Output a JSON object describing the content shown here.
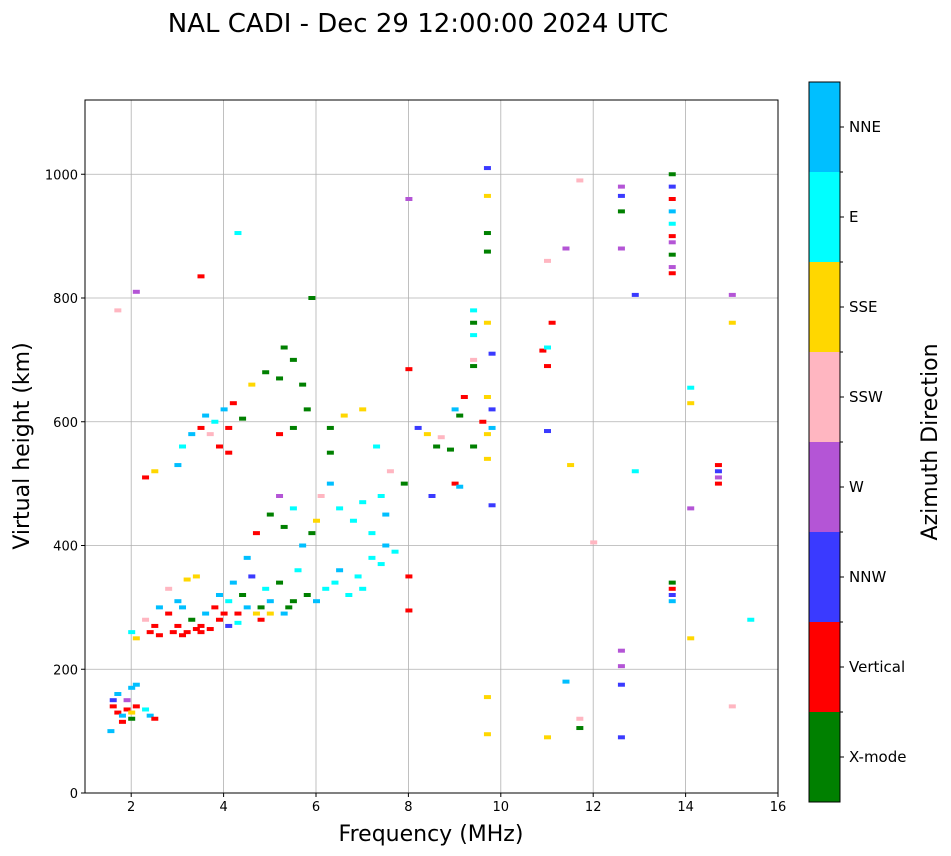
{
  "chart_data": {
    "type": "scatter",
    "title": "NAL CADI - Dec 29 12:00:00 2024 UTC",
    "xlabel": "Frequency (MHz)",
    "ylabel": "Virtual height (km)",
    "xlim": [
      1,
      16
    ],
    "ylim": [
      0,
      1120
    ],
    "xticks": [
      2,
      4,
      6,
      8,
      10,
      12,
      14,
      16
    ],
    "yticks": [
      0,
      200,
      400,
      600,
      800,
      1000
    ],
    "grid": true,
    "colorbar": {
      "label": "Azimuth Direction",
      "categories": [
        "X-mode",
        "Vertical",
        "NNW",
        "W",
        "SSW",
        "SSE",
        "E",
        "NNE"
      ],
      "colors": [
        "#008000",
        "#ff0000",
        "#3a3aff",
        "#b455d6",
        "#ffb6c1",
        "#ffd700",
        "#00ffff",
        "#00bfff"
      ]
    },
    "point_format": [
      "frequency_mhz",
      "virtual_height_km",
      "category_index"
    ],
    "points": [
      [
        1.6,
        140,
        1
      ],
      [
        1.7,
        130,
        1
      ],
      [
        1.8,
        125,
        7
      ],
      [
        1.9,
        135,
        1
      ],
      [
        2.0,
        130,
        5
      ],
      [
        1.6,
        150,
        2
      ],
      [
        1.7,
        160,
        7
      ],
      [
        2.0,
        170,
        7
      ],
      [
        2.1,
        140,
        1
      ],
      [
        2.3,
        135,
        6
      ],
      [
        2.4,
        125,
        7
      ],
      [
        2.5,
        120,
        1
      ],
      [
        1.55,
        100,
        7
      ],
      [
        1.9,
        150,
        3
      ],
      [
        2.1,
        175,
        7
      ],
      [
        1.8,
        115,
        1
      ],
      [
        2.0,
        120,
        0
      ],
      [
        2.0,
        260,
        6
      ],
      [
        2.1,
        250,
        5
      ],
      [
        2.3,
        280,
        4
      ],
      [
        2.4,
        260,
        1
      ],
      [
        2.5,
        270,
        1
      ],
      [
        2.6,
        300,
        7
      ],
      [
        2.8,
        290,
        1
      ],
      [
        3.0,
        270,
        1
      ],
      [
        3.1,
        300,
        7
      ],
      [
        3.2,
        260,
        1
      ],
      [
        3.3,
        280,
        0
      ],
      [
        3.5,
        270,
        1
      ],
      [
        3.6,
        290,
        7
      ],
      [
        3.7,
        265,
        1
      ],
      [
        3.8,
        300,
        1
      ],
      [
        3.9,
        320,
        7
      ],
      [
        4.0,
        290,
        1
      ],
      [
        4.1,
        310,
        6
      ],
      [
        4.2,
        340,
        7
      ],
      [
        4.3,
        290,
        1
      ],
      [
        4.4,
        320,
        0
      ],
      [
        4.5,
        300,
        7
      ],
      [
        4.6,
        350,
        2
      ],
      [
        4.7,
        290,
        5
      ],
      [
        4.8,
        300,
        0
      ],
      [
        4.9,
        330,
        6
      ],
      [
        5.0,
        310,
        7
      ],
      [
        5.2,
        340,
        0
      ],
      [
        5.3,
        290,
        7
      ],
      [
        5.5,
        310,
        0
      ],
      [
        5.6,
        360,
        6
      ],
      [
        5.8,
        320,
        0
      ],
      [
        6.0,
        310,
        7
      ],
      [
        6.2,
        330,
        6
      ],
      [
        6.4,
        340,
        6
      ],
      [
        6.5,
        360,
        7
      ],
      [
        6.7,
        320,
        6
      ],
      [
        6.9,
        350,
        6
      ],
      [
        7.0,
        330,
        6
      ],
      [
        7.2,
        380,
        6
      ],
      [
        7.4,
        370,
        6
      ],
      [
        7.5,
        400,
        7
      ],
      [
        7.7,
        390,
        6
      ],
      [
        2.8,
        330,
        4
      ],
      [
        3.2,
        345,
        5
      ],
      [
        3.4,
        350,
        5
      ],
      [
        3.0,
        310,
        7
      ],
      [
        2.6,
        255,
        1
      ],
      [
        2.9,
        260,
        1
      ],
      [
        3.1,
        255,
        1
      ],
      [
        3.4,
        265,
        1
      ],
      [
        3.5,
        260,
        1
      ],
      [
        3.9,
        280,
        1
      ],
      [
        4.1,
        270,
        2
      ],
      [
        4.3,
        275,
        6
      ],
      [
        4.8,
        280,
        1
      ],
      [
        5.0,
        290,
        5
      ],
      [
        5.4,
        300,
        0
      ],
      [
        4.5,
        380,
        7
      ],
      [
        4.7,
        420,
        1
      ],
      [
        5.0,
        450,
        0
      ],
      [
        5.2,
        480,
        3
      ],
      [
        5.3,
        430,
        0
      ],
      [
        5.5,
        460,
        6
      ],
      [
        5.7,
        400,
        7
      ],
      [
        5.9,
        420,
        0
      ],
      [
        6.0,
        440,
        5
      ],
      [
        6.1,
        480,
        4
      ],
      [
        6.3,
        500,
        7
      ],
      [
        6.5,
        460,
        6
      ],
      [
        6.8,
        440,
        6
      ],
      [
        7.0,
        470,
        6
      ],
      [
        7.2,
        420,
        6
      ],
      [
        7.4,
        480,
        6
      ],
      [
        7.5,
        450,
        7
      ],
      [
        7.6,
        520,
        4
      ],
      [
        6.3,
        590,
        0
      ],
      [
        6.3,
        550,
        0
      ],
      [
        6.6,
        610,
        5
      ],
      [
        7.0,
        620,
        5
      ],
      [
        7.3,
        560,
        6
      ],
      [
        7.9,
        500,
        0
      ],
      [
        2.3,
        510,
        1
      ],
      [
        2.5,
        520,
        5
      ],
      [
        3.0,
        530,
        7
      ],
      [
        3.1,
        560,
        6
      ],
      [
        3.3,
        580,
        7
      ],
      [
        3.5,
        590,
        1
      ],
      [
        3.7,
        580,
        4
      ],
      [
        3.8,
        600,
        6
      ],
      [
        4.0,
        620,
        7
      ],
      [
        4.1,
        590,
        1
      ],
      [
        4.2,
        630,
        1
      ],
      [
        4.1,
        550,
        1
      ],
      [
        3.9,
        560,
        1
      ],
      [
        3.6,
        610,
        7
      ],
      [
        4.4,
        605,
        0
      ],
      [
        4.6,
        660,
        5
      ],
      [
        4.9,
        680,
        0
      ],
      [
        5.2,
        670,
        0
      ],
      [
        5.5,
        700,
        0
      ],
      [
        5.7,
        660,
        0
      ],
      [
        5.3,
        720,
        0
      ],
      [
        5.9,
        800,
        0
      ],
      [
        5.8,
        620,
        0
      ],
      [
        5.5,
        590,
        0
      ],
      [
        5.2,
        580,
        1
      ],
      [
        8.2,
        590,
        2
      ],
      [
        8.4,
        580,
        5
      ],
      [
        8.6,
        560,
        0
      ],
      [
        8.7,
        575,
        4
      ],
      [
        8.9,
        555,
        0
      ],
      [
        9.0,
        620,
        7
      ],
      [
        9.1,
        610,
        0
      ],
      [
        9.0,
        500,
        1
      ],
      [
        9.1,
        495,
        7
      ],
      [
        8.5,
        480,
        2
      ],
      [
        9.4,
        780,
        6
      ],
      [
        9.4,
        760,
        0
      ],
      [
        9.4,
        740,
        6
      ],
      [
        9.4,
        700,
        4
      ],
      [
        9.4,
        690,
        0
      ],
      [
        9.2,
        640,
        1
      ],
      [
        9.4,
        560,
        0
      ],
      [
        9.6,
        600,
        1
      ],
      [
        9.7,
        580,
        5
      ],
      [
        9.7,
        540,
        5
      ],
      [
        9.7,
        760,
        5
      ],
      [
        9.7,
        640,
        5
      ],
      [
        9.8,
        710,
        2
      ],
      [
        9.8,
        620,
        2
      ],
      [
        9.8,
        590,
        7
      ],
      [
        9.8,
        465,
        2
      ],
      [
        9.7,
        1010,
        2
      ],
      [
        9.7,
        965,
        5
      ],
      [
        9.7,
        905,
        0
      ],
      [
        9.7,
        875,
        0
      ],
      [
        9.7,
        155,
        5
      ],
      [
        9.7,
        95,
        5
      ],
      [
        8.0,
        960,
        3
      ],
      [
        8.0,
        685,
        1
      ],
      [
        8.0,
        350,
        1
      ],
      [
        8.0,
        295,
        1
      ],
      [
        10.9,
        715,
        1
      ],
      [
        11.0,
        690,
        1
      ],
      [
        11.1,
        760,
        1
      ],
      [
        11.0,
        720,
        6
      ],
      [
        11.0,
        585,
        2
      ],
      [
        11.0,
        860,
        4
      ],
      [
        11.4,
        880,
        3
      ],
      [
        11.5,
        530,
        5
      ],
      [
        11.7,
        990,
        4
      ],
      [
        12.6,
        980,
        3
      ],
      [
        12.6,
        965,
        2
      ],
      [
        12.6,
        940,
        0
      ],
      [
        12.6,
        880,
        3
      ],
      [
        12.9,
        805,
        2
      ],
      [
        12.9,
        520,
        6
      ],
      [
        12.6,
        230,
        3
      ],
      [
        12.6,
        205,
        3
      ],
      [
        12.6,
        175,
        2
      ],
      [
        12.6,
        90,
        2
      ],
      [
        13.7,
        1000,
        0
      ],
      [
        13.7,
        980,
        2
      ],
      [
        13.7,
        960,
        1
      ],
      [
        13.7,
        940,
        7
      ],
      [
        13.7,
        920,
        6
      ],
      [
        13.7,
        900,
        1
      ],
      [
        13.7,
        890,
        3
      ],
      [
        13.7,
        870,
        0
      ],
      [
        13.7,
        850,
        3
      ],
      [
        13.7,
        840,
        1
      ],
      [
        13.7,
        340,
        0
      ],
      [
        13.7,
        330,
        1
      ],
      [
        13.7,
        320,
        2
      ],
      [
        13.7,
        310,
        7
      ],
      [
        14.1,
        655,
        6
      ],
      [
        14.1,
        630,
        5
      ],
      [
        14.1,
        460,
        3
      ],
      [
        14.1,
        250,
        5
      ],
      [
        14.7,
        530,
        1
      ],
      [
        14.7,
        520,
        2
      ],
      [
        14.7,
        510,
        3
      ],
      [
        14.7,
        500,
        1
      ],
      [
        15.0,
        805,
        3
      ],
      [
        15.0,
        760,
        5
      ],
      [
        15.4,
        280,
        6
      ],
      [
        15.0,
        140,
        4
      ],
      [
        11.0,
        90,
        5
      ],
      [
        11.7,
        105,
        0
      ],
      [
        11.7,
        120,
        4
      ],
      [
        12.0,
        405,
        4
      ],
      [
        11.4,
        180,
        7
      ],
      [
        4.3,
        905,
        6
      ],
      [
        3.5,
        835,
        1
      ],
      [
        2.1,
        810,
        3
      ],
      [
        1.7,
        780,
        4
      ]
    ]
  }
}
